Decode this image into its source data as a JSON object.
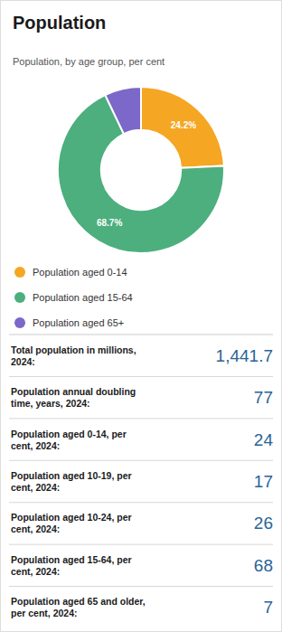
{
  "chart_data": [
    {
      "type": "pie",
      "title": "Population",
      "subtitle": "Population, by age group, per cent",
      "categories": [
        "Population aged 0-14",
        "Population aged 15-64",
        "Population aged 65+"
      ],
      "values": [
        24.2,
        68.7,
        7.1
      ],
      "value_labels": [
        "24.2%",
        "68.7%",
        null
      ],
      "colors": [
        "#f5a623",
        "#4caf7d",
        "#7b68c8"
      ],
      "data_labels": true,
      "legend": "bottom"
    },
    {
      "type": "table",
      "categories": [
        "Total population in millions,\n2024:",
        "Population annual doubling\ntime, years, 2024:",
        "Population aged 0-14, per\ncent, 2024:",
        "Population aged 10-19, per\ncent, 2024:",
        "Population aged 10-24, per\ncent, 2024:",
        "Population aged 15-64, per\ncent, 2024:",
        "Population aged 65 and older,\nper cent, 2024:"
      ],
      "values": [
        1441.7,
        77,
        24,
        17,
        26,
        68,
        7
      ],
      "value_labels": [
        "1,441.7",
        "77",
        "24",
        "17",
        "26",
        "68",
        "7"
      ],
      "color": "#2a6496"
    }
  ]
}
